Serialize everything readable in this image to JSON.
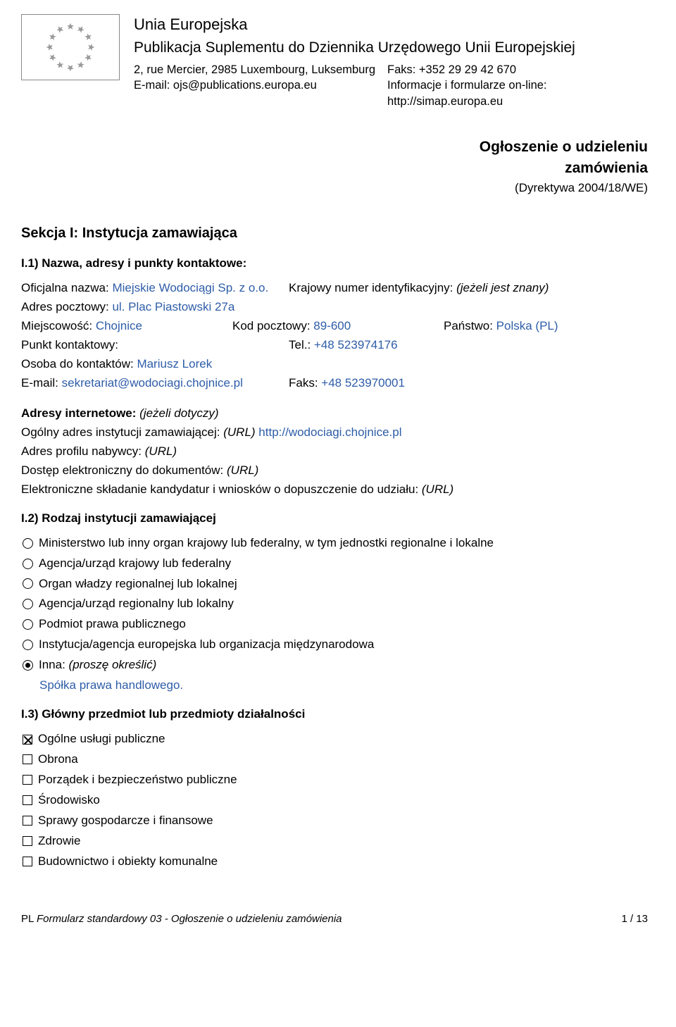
{
  "header": {
    "title": "Unia Europejska",
    "subtitle": "Publikacja Suplementu do Dziennika Urzędowego Unii Europejskiej",
    "address": "2, rue Mercier, 2985 Luxembourg, Luksemburg",
    "fax": "Faks: +352 29 29 42 670",
    "email_label": "E-mail: ojs@publications.europa.eu",
    "info_label": "Informacje i formularze on-line: http://simap.europa.eu"
  },
  "notice": {
    "line1": "Ogłoszenie o udzieleniu",
    "line2": "zamówienia",
    "sub": "(Dyrektywa 2004/18/WE)"
  },
  "section1": {
    "heading": "Sekcja I: Instytucja zamawiająca",
    "i1": {
      "heading": "I.1) Nazwa, adresy i punkty kontaktowe:",
      "off_name_label": "Oficjalna nazwa:  ",
      "off_name": "Miejskie Wodociągi Sp. z o.o.",
      "nat_id_label": "Krajowy numer identyfikacyjny:  ",
      "nat_id_hint": "(jeżeli jest znany)",
      "postal_label": "Adres pocztowy: ",
      "postal": "ul. Plac Piastowski 27a",
      "town_label": "Miejscowość:  ",
      "town": "Chojnice",
      "zip_label": "Kod pocztowy:  ",
      "zip": "89-600",
      "country_label": "Państwo:  ",
      "country": "Polska (PL)",
      "cp_label": "Punkt kontaktowy: ",
      "tel_label": "Tel.: ",
      "tel": "+48 523974176",
      "contact_for_label": "Osoba do kontaktów:  ",
      "contact_for": "Mariusz Lorek",
      "email_label": "E-mail:  ",
      "email": "sekretariat@wodociagi.chojnice.pl",
      "fax_label": "Faks:  ",
      "fax": "+48 523970001",
      "addr_heading": "Adresy internetowe: ",
      "addr_hint": "(jeżeli dotyczy)",
      "gen_addr_label": "Ogólny adres instytucji zamawiającej:  ",
      "url_label": "(URL) ",
      "gen_addr": "http://wodociagi.chojnice.pl",
      "buyer_profile": "Adres profilu nabywcy:  ",
      "elec_access": "Dostęp elektroniczny do dokumentów:  ",
      "elec_submit": "Elektroniczne składanie kandydatur i wniosków o dopuszczenie do udziału:  "
    },
    "i2": {
      "heading": "I.2) Rodzaj instytucji zamawiającej",
      "options": [
        {
          "label": "Ministerstwo lub inny organ krajowy lub federalny, w tym jednostki regionalne i lokalne",
          "selected": false
        },
        {
          "label": "Agencja/urząd krajowy lub federalny",
          "selected": false
        },
        {
          "label": "Organ władzy regionalnej lub lokalnej",
          "selected": false
        },
        {
          "label": "Agencja/urząd regionalny lub lokalny",
          "selected": false
        },
        {
          "label": "Podmiot prawa publicznego",
          "selected": false
        },
        {
          "label": "Instytucja/agencja europejska lub organizacja międzynarodowa",
          "selected": false
        },
        {
          "label": "Inna:  ",
          "hint": "(proszę określić)",
          "selected": true
        }
      ],
      "other_value": "Spółka prawa handlowego."
    },
    "i3": {
      "heading": "I.3) Główny przedmiot lub przedmioty działalności",
      "options": [
        {
          "label": "Ogólne usługi publiczne",
          "selected": true
        },
        {
          "label": "Obrona",
          "selected": false
        },
        {
          "label": "Porządek i bezpieczeństwo publiczne",
          "selected": false
        },
        {
          "label": "Środowisko",
          "selected": false
        },
        {
          "label": "Sprawy gospodarcze i finansowe",
          "selected": false
        },
        {
          "label": "Zdrowie",
          "selected": false
        },
        {
          "label": "Budownictwo i obiekty komunalne",
          "selected": false
        }
      ]
    }
  },
  "footer": {
    "left_prefix": "PL  ",
    "left": "Formularz standardowy 03 - Ogłoszenie o udzieleniu zamówienia",
    "right": "1 / 13"
  },
  "colors": {
    "text": "#000000",
    "link": "#2e5da8",
    "flag_border": "#888888",
    "star": "#888888"
  }
}
